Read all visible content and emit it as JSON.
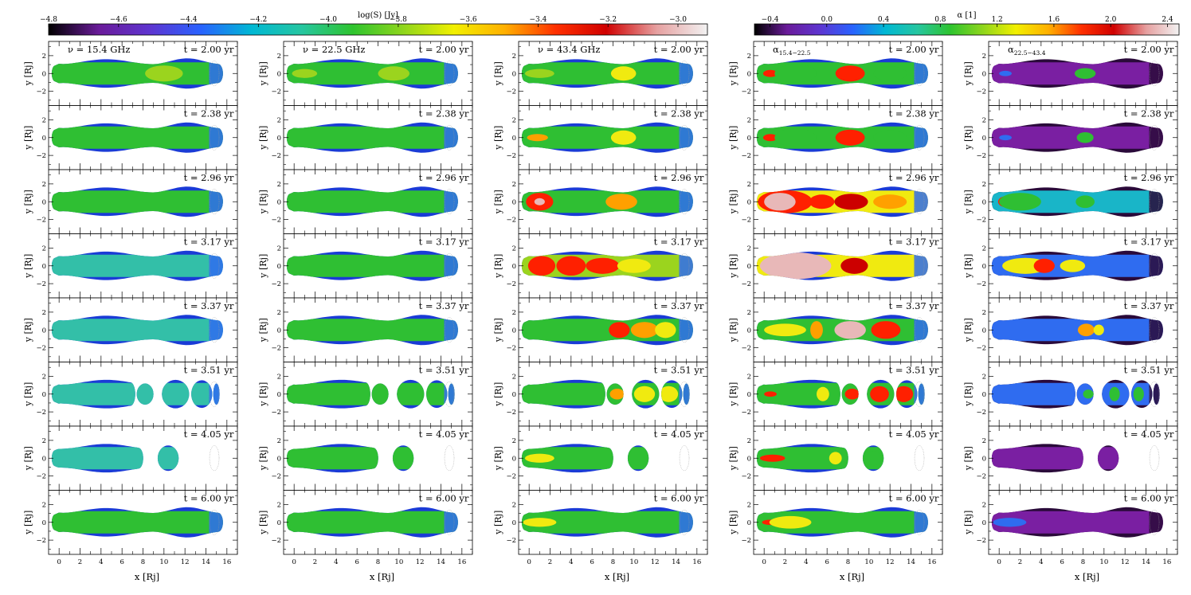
{
  "chart_data": {
    "type": "heatmap",
    "colorbars": [
      {
        "id": "flux",
        "label": "log(S) [Jy]",
        "ticks": [
          -4.8,
          -4.6,
          -4.4,
          -4.2,
          -4.0,
          -3.8,
          -3.6,
          -3.4,
          -3.2,
          -3.0
        ],
        "tick_labels": [
          "−4.8",
          "−4.6",
          "−4.4",
          "−4.2",
          "−4.0",
          "−3.8",
          "−3.6",
          "−3.4",
          "−3.2",
          "−3.0"
        ],
        "range": [
          -4.8,
          -2.87
        ],
        "colors": [
          "#000000",
          "#6a1b9a",
          "#5e35d0",
          "#2962ff",
          "#00b8d4",
          "#26c6a0",
          "#2ec42e",
          "#8fd61c",
          "#f2f000",
          "#ffb000",
          "#ff3000",
          "#d00000",
          "#e6a0a0",
          "#f2f2f2"
        ]
      },
      {
        "id": "alpha",
        "label": "α [1]",
        "ticks": [
          -0.4,
          0.0,
          0.4,
          0.8,
          1.2,
          1.6,
          2.0,
          2.4
        ],
        "tick_labels": [
          "−0.4",
          "0.0",
          "0.4",
          "0.8",
          "1.2",
          "1.6",
          "2.0",
          "2.4"
        ],
        "range": [
          -0.78,
          2.52
        ],
        "colors": [
          "#000000",
          "#6a1b9a",
          "#5e35d0",
          "#2962ff",
          "#00b8d4",
          "#26c6a0",
          "#2ec42e",
          "#8fd61c",
          "#f2f000",
          "#ffb000",
          "#ff3000",
          "#d00000",
          "#e6a0a0",
          "#f2f2f2"
        ]
      }
    ],
    "columns": [
      {
        "id": "nu-15",
        "label": "ν = 15.4 GHz",
        "colorbar": "flux"
      },
      {
        "id": "nu-22",
        "label": "ν = 22.5 GHz",
        "colorbar": "flux"
      },
      {
        "id": "nu-43",
        "label": "ν = 43.4 GHz",
        "colorbar": "flux"
      },
      {
        "id": "alpha-15-22",
        "label": "α",
        "label_sub": "15.4−22.5",
        "colorbar": "alpha"
      },
      {
        "id": "alpha-22-43",
        "label": "α",
        "label_sub": "22.5−43.4",
        "colorbar": "alpha"
      }
    ],
    "times": [
      "t = 2.00 yr",
      "t = 2.38 yr",
      "t = 2.96 yr",
      "t = 3.17 yr",
      "t = 3.37 yr",
      "t = 3.51 yr",
      "t = 4.05 yr",
      "t = 6.00 yr"
    ],
    "x_axis": {
      "label": "x [Rj]",
      "range": [
        -1,
        17
      ],
      "ticks": [
        0,
        2,
        4,
        6,
        8,
        10,
        12,
        14,
        16
      ],
      "tick_labels": [
        "0",
        "2",
        "4",
        "6",
        "8",
        "10",
        "12",
        "14",
        "16"
      ]
    },
    "y_axis": {
      "label": "y [Rj]",
      "range": [
        -3.6,
        3.6
      ],
      "ticks": [
        -2,
        0,
        2
      ],
      "tick_labels": [
        "−2",
        "0",
        "2"
      ]
    },
    "blob_palette": {
      "deep_blue": "#1a3bd6",
      "blue": "#2f6cf0",
      "cyan": "#19b5c8",
      "teal": "#33bfa8",
      "green": "#2fbf33",
      "lime": "#9bd41e",
      "yellow": "#f0ea10",
      "orange": "#ffa000",
      "red": "#ff2000",
      "darkred": "#cc0000",
      "pink": "#e8b8b8",
      "purple": "#7a1fa2",
      "dark": "#2a0a3a"
    }
  }
}
